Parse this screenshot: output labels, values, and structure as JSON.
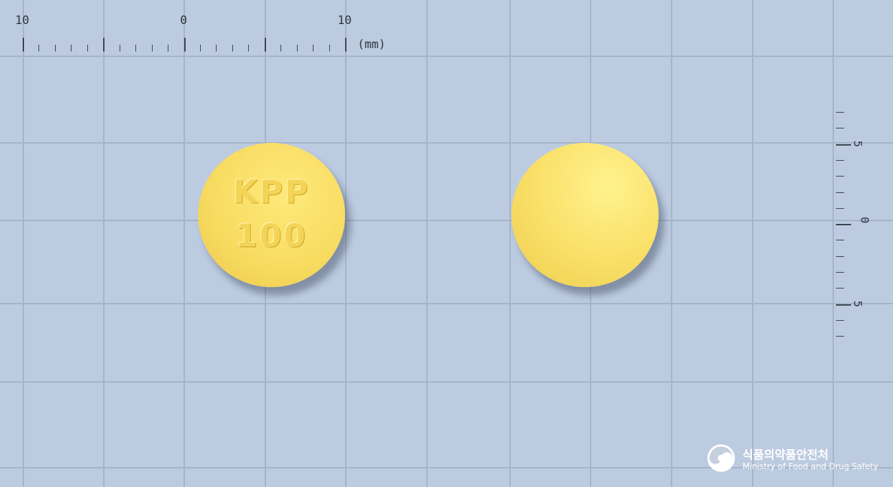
{
  "ruler_top": {
    "labels": [
      "10",
      "0",
      "10"
    ],
    "unit": "(mm)"
  },
  "ruler_right": {
    "labels": [
      "5",
      "0",
      "5"
    ]
  },
  "tablet": {
    "front_imprint_line1": "KPP",
    "front_imprint_line2": "100",
    "color": "#f8dc62"
  },
  "footer": {
    "org_korean": "식품의약품안전처",
    "org_english": "Ministry of Food and Drug Safety"
  }
}
